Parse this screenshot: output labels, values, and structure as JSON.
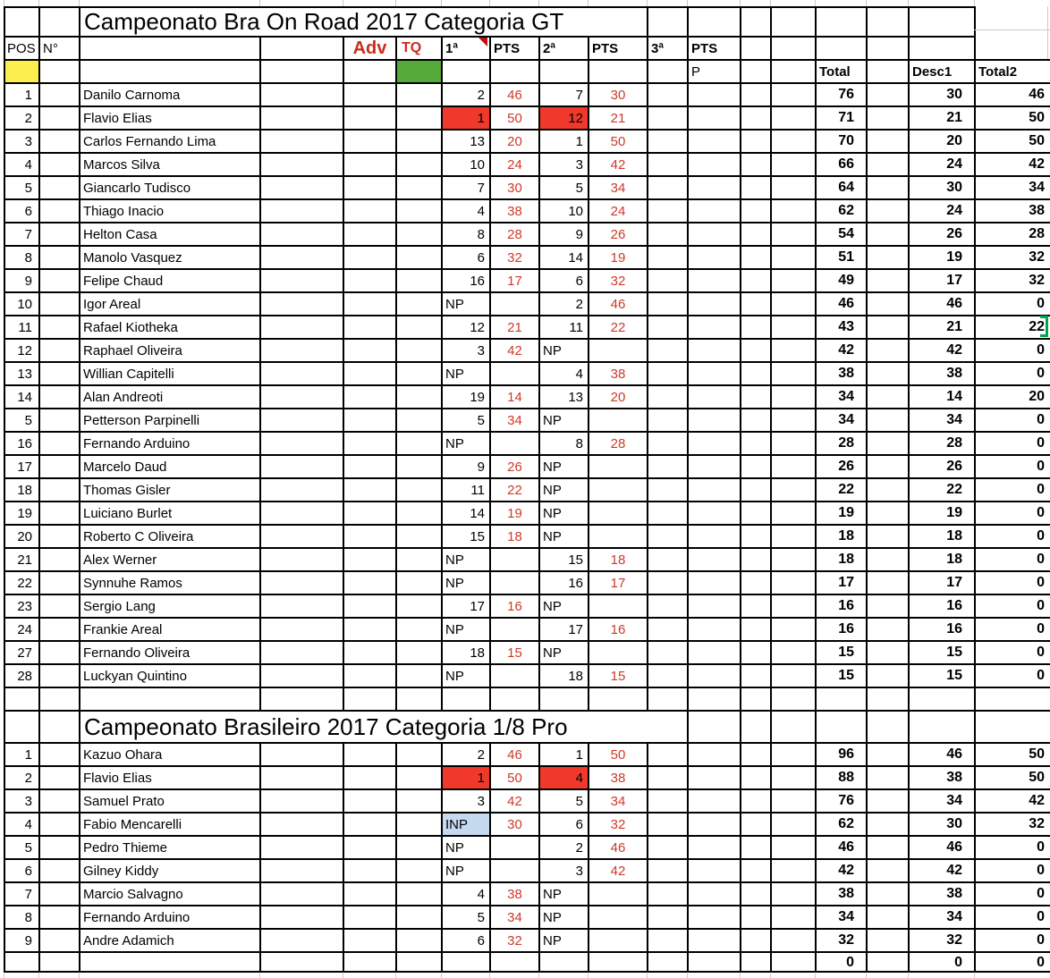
{
  "sheet_headers": {
    "pos": "POS",
    "num": "N°",
    "adv": "Adv",
    "tq": "TQ",
    "race1": "1ª",
    "pts": "PTS",
    "race2": "2ª",
    "race3": "3ª",
    "p": "P",
    "total": "Total",
    "desc1": "Desc1",
    "total2": "Total2"
  },
  "colors": {
    "highlight_red": "#f1392b",
    "highlight_yellow": "#fbee4f",
    "highlight_green": "#55aa3a",
    "highlight_blue": "#c5d9ef",
    "points_text_red": "#cd3a2a",
    "header_text_red": "#cc2b1d",
    "selection_cursor_green": "#00a550",
    "comment_marker_red": "#bb1111"
  },
  "tables": [
    {
      "title": "Campeonato Bra On Road 2017 Categoria GT",
      "rows": [
        {
          "pos": "1",
          "name": "Danilo Carnoma",
          "r1": "2",
          "p1": "46",
          "r2": "7",
          "p2": "30",
          "total": "76",
          "desc1": "30",
          "total2": "46"
        },
        {
          "pos": "2",
          "name": "Flavio Elias",
          "r1": "1",
          "p1": "50",
          "r2": "12",
          "p2": "21",
          "total": "71",
          "desc1": "21",
          "total2": "50",
          "hl1": "red",
          "hl2": "red"
        },
        {
          "pos": "3",
          "name": "Carlos Fernando Lima",
          "r1": "13",
          "p1": "20",
          "r2": "1",
          "p2": "50",
          "total": "70",
          "desc1": "20",
          "total2": "50"
        },
        {
          "pos": "4",
          "name": "Marcos Silva",
          "r1": "10",
          "p1": "24",
          "r2": "3",
          "p2": "42",
          "total": "66",
          "desc1": "24",
          "total2": "42"
        },
        {
          "pos": "5",
          "name": "Giancarlo Tudisco",
          "r1": "7",
          "p1": "30",
          "r2": "5",
          "p2": "34",
          "total": "64",
          "desc1": "30",
          "total2": "34"
        },
        {
          "pos": "6",
          "name": "Thiago Inacio",
          "r1": "4",
          "p1": "38",
          "r2": "10",
          "p2": "24",
          "total": "62",
          "desc1": "24",
          "total2": "38"
        },
        {
          "pos": "7",
          "name": "Helton Casa",
          "r1": "8",
          "p1": "28",
          "r2": "9",
          "p2": "26",
          "total": "54",
          "desc1": "26",
          "total2": "28"
        },
        {
          "pos": "8",
          "name": "Manolo Vasquez",
          "r1": "6",
          "p1": "32",
          "r2": "14",
          "p2": "19",
          "total": "51",
          "desc1": "19",
          "total2": "32"
        },
        {
          "pos": "9",
          "name": "Felipe Chaud",
          "r1": "16",
          "p1": "17",
          "r2": "6",
          "p2": "32",
          "total": "49",
          "desc1": "17",
          "total2": "32"
        },
        {
          "pos": "10",
          "name": "Igor Areal",
          "r1": "NP",
          "p1": "",
          "r2": "2",
          "p2": "46",
          "total": "46",
          "desc1": "46",
          "total2": "0"
        },
        {
          "pos": "11",
          "name": "Rafael Kiotheka",
          "r1": "12",
          "p1": "21",
          "r2": "11",
          "p2": "22",
          "total": "43",
          "desc1": "21",
          "total2": "22",
          "cursor": true
        },
        {
          "pos": "12",
          "name": "Raphael Oliveira",
          "r1": "3",
          "p1": "42",
          "r2": "NP",
          "p2": "",
          "total": "42",
          "desc1": "42",
          "total2": "0"
        },
        {
          "pos": "13",
          "name": "Willian Capitelli",
          "r1": "NP",
          "p1": "",
          "r2": "4",
          "p2": "38",
          "total": "38",
          "desc1": "38",
          "total2": "0"
        },
        {
          "pos": "14",
          "name": "Alan Andreoti",
          "r1": "19",
          "p1": "14",
          "r2": "13",
          "p2": "20",
          "total": "34",
          "desc1": "14",
          "total2": "20"
        },
        {
          "pos": "5",
          "name": "Petterson Parpinelli",
          "r1": "5",
          "p1": "34",
          "r2": "NP",
          "p2": "",
          "total": "34",
          "desc1": "34",
          "total2": "0"
        },
        {
          "pos": "16",
          "name": "Fernando Arduino",
          "r1": "NP",
          "p1": "",
          "r2": "8",
          "p2": "28",
          "total": "28",
          "desc1": "28",
          "total2": "0"
        },
        {
          "pos": "17",
          "name": "Marcelo Daud",
          "r1": "9",
          "p1": "26",
          "r2": "NP",
          "p2": "",
          "total": "26",
          "desc1": "26",
          "total2": "0"
        },
        {
          "pos": "18",
          "name": "Thomas Gisler",
          "r1": "11",
          "p1": "22",
          "r2": "NP",
          "p2": "",
          "total": "22",
          "desc1": "22",
          "total2": "0"
        },
        {
          "pos": "19",
          "name": "Luiciano Burlet",
          "r1": "14",
          "p1": "19",
          "r2": "NP",
          "p2": "",
          "total": "19",
          "desc1": "19",
          "total2": "0"
        },
        {
          "pos": "20",
          "name": "Roberto C Oliveira",
          "r1": "15",
          "p1": "18",
          "r2": "NP",
          "p2": "",
          "total": "18",
          "desc1": "18",
          "total2": "0"
        },
        {
          "pos": "21",
          "name": "Alex Werner",
          "r1": "NP",
          "p1": "",
          "r2": "15",
          "p2": "18",
          "total": "18",
          "desc1": "18",
          "total2": "0"
        },
        {
          "pos": "22",
          "name": "Synnuhe Ramos",
          "r1": "NP",
          "p1": "",
          "r2": "16",
          "p2": "17",
          "total": "17",
          "desc1": "17",
          "total2": "0"
        },
        {
          "pos": "23",
          "name": "Sergio Lang",
          "r1": "17",
          "p1": "16",
          "r2": "NP",
          "p2": "",
          "total": "16",
          "desc1": "16",
          "total2": "0"
        },
        {
          "pos": "24",
          "name": "Frankie Areal",
          "r1": "NP",
          "p1": "",
          "r2": "17",
          "p2": "16",
          "total": "16",
          "desc1": "16",
          "total2": "0"
        },
        {
          "pos": "27",
          "name": "Fernando Oliveira",
          "r1": "18",
          "p1": "15",
          "r2": "NP",
          "p2": "",
          "total": "15",
          "desc1": "15",
          "total2": "0"
        },
        {
          "pos": "28",
          "name": "Luckyan Quintino",
          "r1": "NP",
          "p1": "",
          "r2": "18",
          "p2": "15",
          "total": "15",
          "desc1": "15",
          "total2": "0"
        }
      ]
    },
    {
      "title": "Campeonato Brasileiro 2017 Categoria 1/8 Pro",
      "rows": [
        {
          "pos": "1",
          "name": "Kazuo Ohara",
          "r1": "2",
          "p1": "46",
          "r2": "1",
          "p2": "50",
          "total": "96",
          "desc1": "46",
          "total2": "50"
        },
        {
          "pos": "2",
          "name": "Flavio Elias",
          "r1": "1",
          "p1": "50",
          "r2": "4",
          "p2": "38",
          "total": "88",
          "desc1": "38",
          "total2": "50",
          "hl1": "red",
          "hl2": "red"
        },
        {
          "pos": "3",
          "name": "Samuel Prato",
          "r1": "3",
          "p1": "42",
          "r2": "5",
          "p2": "34",
          "total": "76",
          "desc1": "34",
          "total2": "42"
        },
        {
          "pos": "4",
          "name": "Fabio Mencarelli",
          "r1": "INP",
          "p1": "30",
          "r2": "6",
          "p2": "32",
          "total": "62",
          "desc1": "30",
          "total2": "32",
          "hl1": "blue"
        },
        {
          "pos": "5",
          "name": "Pedro Thieme",
          "r1": "NP",
          "p1": "",
          "r2": "2",
          "p2": "46",
          "total": "46",
          "desc1": "46",
          "total2": "0"
        },
        {
          "pos": "6",
          "name": "Gilney Kiddy",
          "r1": "NP",
          "p1": "",
          "r2": "3",
          "p2": "42",
          "total": "42",
          "desc1": "42",
          "total2": "0"
        },
        {
          "pos": "7",
          "name": "Marcio Salvagno",
          "r1": "4",
          "p1": "38",
          "r2": "NP",
          "p2": "",
          "total": "38",
          "desc1": "38",
          "total2": "0"
        },
        {
          "pos": "8",
          "name": "Fernando Arduino",
          "r1": "5",
          "p1": "34",
          "r2": "NP",
          "p2": "",
          "total": "34",
          "desc1": "34",
          "total2": "0"
        },
        {
          "pos": "9",
          "name": "Andre Adamich",
          "r1": "6",
          "p1": "32",
          "r2": "NP",
          "p2": "",
          "total": "32",
          "desc1": "32",
          "total2": "0"
        }
      ],
      "footer": {
        "total": "0",
        "desc1": "0",
        "total2": "0"
      }
    }
  ]
}
